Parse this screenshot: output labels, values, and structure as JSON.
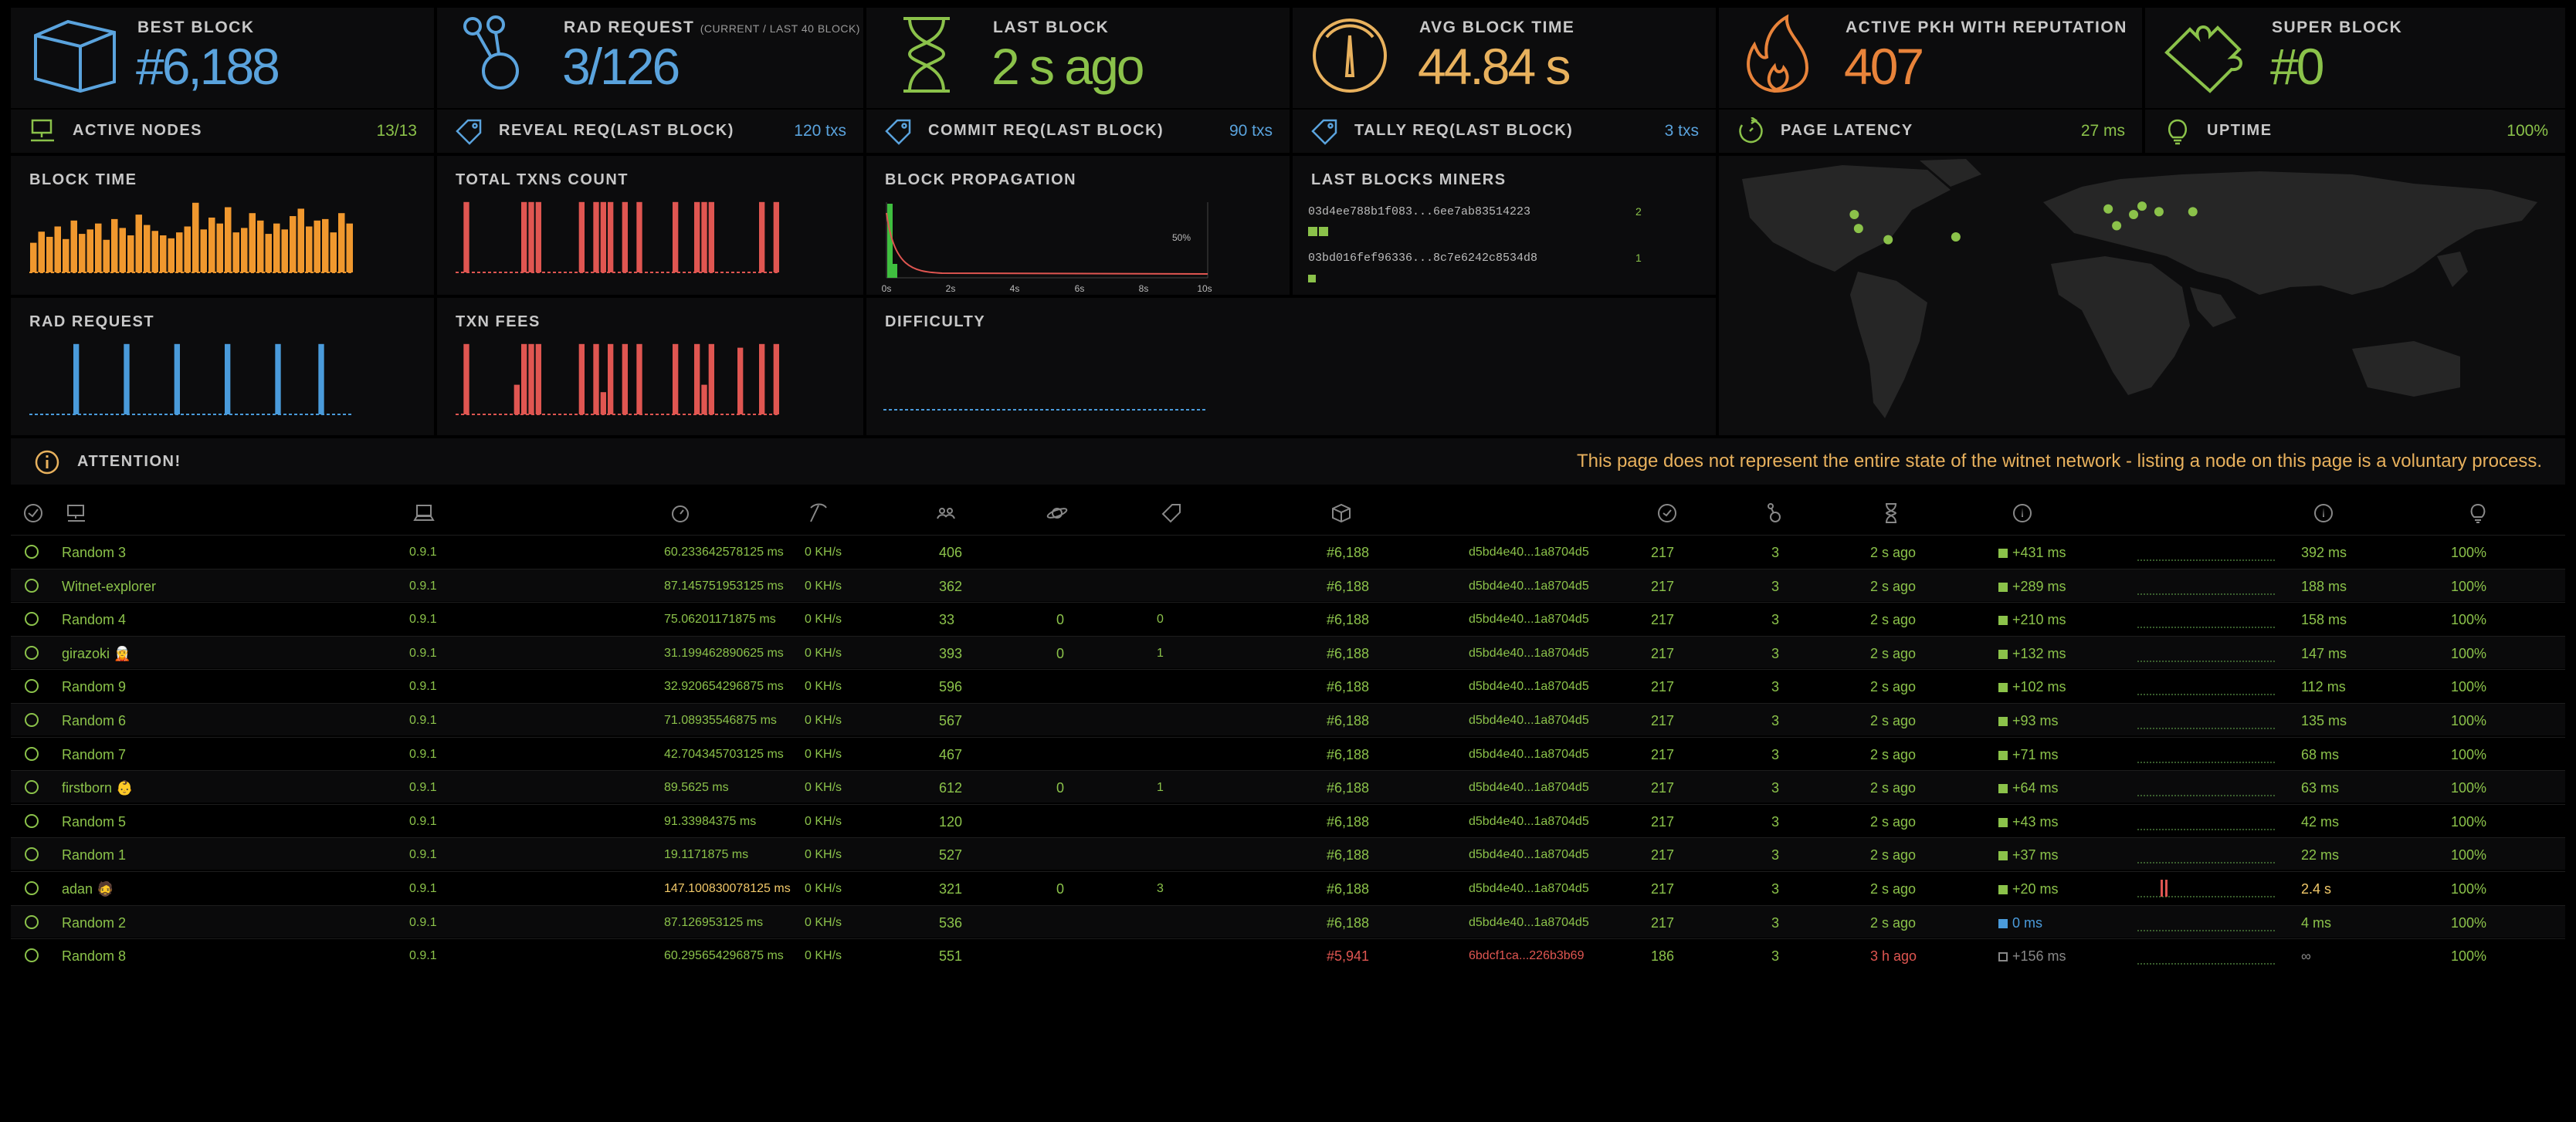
{
  "stats": {
    "best_block": {
      "label": "BEST BLOCK",
      "value": "#6,188",
      "icon": "cube-icon",
      "color": "#5aa3dd"
    },
    "rad_request": {
      "label": "RAD REQUEST",
      "sublabel": "(CURRENT / LAST 40 BLOCK)",
      "value": "3/126",
      "icon": "network-icon",
      "color": "#5aa3dd"
    },
    "last_block": {
      "label": "LAST BLOCK",
      "value": "2 s ago",
      "icon": "hourglass-icon",
      "color": "#8bc24a"
    },
    "avg_block_time": {
      "label": "AVG BLOCK TIME",
      "value": "44.84 s",
      "icon": "gauge-icon",
      "color": "#e8b15d"
    },
    "active_pkh": {
      "label": "ACTIVE PKH WITH REPUTATION",
      "value": "407",
      "icon": "fire-icon",
      "color": "#e8833a"
    },
    "super_block": {
      "label": "SUPER BLOCK",
      "value": "#0",
      "icon": "puzzle-icon",
      "color": "#8bc24a"
    }
  },
  "substats": {
    "active_nodes": {
      "label": "ACTIVE NODES",
      "value": "13/13",
      "icon": "monitor-icon",
      "color": "#8bc24a"
    },
    "reveal_req": {
      "label": "REVEAL REQ(LAST BLOCK)",
      "value": "120 txs",
      "icon": "tag-icon",
      "color": "#5aa3dd"
    },
    "commit_req": {
      "label": "COMMIT REQ(LAST BLOCK)",
      "value": "90 txs",
      "icon": "tag-icon",
      "color": "#5aa3dd"
    },
    "tally_req": {
      "label": "TALLY REQ(LAST BLOCK)",
      "value": "3 txs",
      "icon": "tag-icon",
      "color": "#5aa3dd"
    },
    "page_latency": {
      "label": "PAGE LATENCY",
      "value": "27 ms",
      "icon": "refresh-icon",
      "color": "#8bc24a"
    },
    "uptime": {
      "label": "UPTIME",
      "value": "100%",
      "icon": "bulb-icon",
      "color": "#8bc24a"
    }
  },
  "charts": {
    "block_time": {
      "label": "BLOCK TIME"
    },
    "total_txns": {
      "label": "TOTAL TXNS COUNT"
    },
    "block_propagation": {
      "label": "BLOCK PROPAGATION",
      "percent_label": "50%",
      "ticks": [
        "0s",
        "2s",
        "4s",
        "6s",
        "8s",
        "10s"
      ]
    },
    "rad_request": {
      "label": "RAD REQUEST"
    },
    "txn_fees": {
      "label": "TXN FEES"
    },
    "difficulty": {
      "label": "DIFFICULTY"
    }
  },
  "chart_data": [
    {
      "type": "bar",
      "name": "block_time",
      "values": [
        40,
        55,
        48,
        62,
        45,
        70,
        52,
        58,
        66,
        44,
        72,
        60,
        50,
        78,
        64,
        56,
        50,
        46,
        54,
        62,
        94,
        58,
        74,
        66,
        88,
        54,
        60,
        80,
        70,
        52,
        66,
        58,
        76,
        86,
        62,
        70,
        72,
        54,
        80,
        66
      ],
      "color": "#f0982e"
    },
    {
      "type": "bar",
      "name": "total_txns",
      "values": [
        0,
        95,
        0,
        0,
        0,
        0,
        0,
        0,
        0,
        95,
        95,
        95,
        0,
        0,
        0,
        0,
        0,
        95,
        0,
        95,
        95,
        95,
        0,
        95,
        0,
        95,
        0,
        0,
        0,
        0,
        95,
        0,
        0,
        95,
        95,
        95,
        0,
        0,
        0,
        0,
        0,
        0,
        95,
        0,
        95
      ],
      "color": "#e05651"
    },
    {
      "type": "bar",
      "name": "rad_request",
      "values": [
        0,
        0,
        0,
        0,
        0,
        0,
        95,
        0,
        0,
        0,
        0,
        0,
        0,
        95,
        0,
        0,
        0,
        0,
        0,
        0,
        95,
        0,
        0,
        0,
        0,
        0,
        0,
        95,
        0,
        0,
        0,
        0,
        0,
        0,
        95,
        0,
        0,
        0,
        0,
        0,
        95,
        0,
        0,
        0,
        0
      ],
      "color": "#4a9bdb"
    },
    {
      "type": "bar",
      "name": "txn_fees",
      "values": [
        0,
        95,
        0,
        0,
        0,
        0,
        0,
        0,
        40,
        95,
        95,
        95,
        0,
        0,
        0,
        0,
        0,
        95,
        0,
        95,
        30,
        95,
        0,
        95,
        0,
        95,
        0,
        0,
        0,
        0,
        95,
        0,
        0,
        95,
        40,
        95,
        0,
        0,
        0,
        90,
        0,
        0,
        95,
        0,
        95
      ],
      "color": "#e05651"
    },
    {
      "type": "line",
      "name": "block_propagation",
      "x_ticks": [
        "0s",
        "2s",
        "4s",
        "6s",
        "8s",
        "10s"
      ]
    },
    {
      "type": "line",
      "name": "difficulty",
      "values": []
    }
  ],
  "miners": {
    "label": "LAST BLOCKS MINERS",
    "items": [
      {
        "address": "03d4ee788b1f083...6ee7ab83514223",
        "count": "2",
        "blocks": 2
      },
      {
        "address": "03bd016fef96336...8c7e6242c8534d8",
        "count": "1",
        "blocks": 1
      }
    ]
  },
  "map": {
    "nodes": [
      [
        0.16,
        0.21
      ],
      [
        0.165,
        0.26
      ],
      [
        0.2,
        0.3
      ],
      [
        0.28,
        0.29
      ],
      [
        0.46,
        0.19
      ],
      [
        0.47,
        0.25
      ],
      [
        0.49,
        0.21
      ],
      [
        0.5,
        0.18
      ],
      [
        0.52,
        0.2
      ],
      [
        0.56,
        0.2
      ]
    ]
  },
  "attention": {
    "label": "ATTENTION!",
    "message": "This page does not represent the entire state of the witnet network - listing a node on this page is a voluntary process."
  },
  "nodes": [
    {
      "name": "Random 3",
      "version": "0.9.1",
      "latency": "60.233642578125 ms",
      "hashrate": "0 KH/s",
      "peers": "406",
      "pending": "",
      "txs": "",
      "block": "#6,188",
      "hash": "d5bd4e40...1a8704d5",
      "txcount": "217",
      "rads": "3",
      "age": "2 s ago",
      "prop": "+431 ms",
      "avg": "392 ms",
      "uptime": "100%"
    },
    {
      "name": "Witnet-explorer",
      "version": "0.9.1",
      "latency": "87.145751953125 ms",
      "hashrate": "0 KH/s",
      "peers": "362",
      "pending": "",
      "txs": "",
      "block": "#6,188",
      "hash": "d5bd4e40...1a8704d5",
      "txcount": "217",
      "rads": "3",
      "age": "2 s ago",
      "prop": "+289 ms",
      "avg": "188 ms",
      "uptime": "100%"
    },
    {
      "name": "Random 4",
      "version": "0.9.1",
      "latency": "75.06201171875 ms",
      "hashrate": "0 KH/s",
      "peers": "33",
      "pending": "0",
      "txs": "0",
      "block": "#6,188",
      "hash": "d5bd4e40...1a8704d5",
      "txcount": "217",
      "rads": "3",
      "age": "2 s ago",
      "prop": "+210 ms",
      "avg": "158 ms",
      "uptime": "100%"
    },
    {
      "name": "girazoki 🧝",
      "version": "0.9.1",
      "latency": "31.199462890625 ms",
      "hashrate": "0 KH/s",
      "peers": "393",
      "pending": "0",
      "txs": "1",
      "block": "#6,188",
      "hash": "d5bd4e40...1a8704d5",
      "txcount": "217",
      "rads": "3",
      "age": "2 s ago",
      "prop": "+132 ms",
      "avg": "147 ms",
      "uptime": "100%"
    },
    {
      "name": "Random 9",
      "version": "0.9.1",
      "latency": "32.920654296875 ms",
      "hashrate": "0 KH/s",
      "peers": "596",
      "pending": "",
      "txs": "",
      "block": "#6,188",
      "hash": "d5bd4e40...1a8704d5",
      "txcount": "217",
      "rads": "3",
      "age": "2 s ago",
      "prop": "+102 ms",
      "avg": "112 ms",
      "uptime": "100%"
    },
    {
      "name": "Random 6",
      "version": "0.9.1",
      "latency": "71.08935546875 ms",
      "hashrate": "0 KH/s",
      "peers": "567",
      "pending": "",
      "txs": "",
      "block": "#6,188",
      "hash": "d5bd4e40...1a8704d5",
      "txcount": "217",
      "rads": "3",
      "age": "2 s ago",
      "prop": "+93 ms",
      "avg": "135 ms",
      "uptime": "100%"
    },
    {
      "name": "Random 7",
      "version": "0.9.1",
      "latency": "42.704345703125 ms",
      "hashrate": "0 KH/s",
      "peers": "467",
      "pending": "",
      "txs": "",
      "block": "#6,188",
      "hash": "d5bd4e40...1a8704d5",
      "txcount": "217",
      "rads": "3",
      "age": "2 s ago",
      "prop": "+71 ms",
      "avg": "68 ms",
      "uptime": "100%"
    },
    {
      "name": "firstborn 👶",
      "version": "0.9.1",
      "latency": "89.5625 ms",
      "hashrate": "0 KH/s",
      "peers": "612",
      "pending": "0",
      "txs": "1",
      "block": "#6,188",
      "hash": "d5bd4e40...1a8704d5",
      "txcount": "217",
      "rads": "3",
      "age": "2 s ago",
      "prop": "+64 ms",
      "avg": "63 ms",
      "uptime": "100%"
    },
    {
      "name": "Random 5",
      "version": "0.9.1",
      "latency": "91.33984375 ms",
      "hashrate": "0 KH/s",
      "peers": "120",
      "pending": "",
      "txs": "",
      "block": "#6,188",
      "hash": "d5bd4e40...1a8704d5",
      "txcount": "217",
      "rads": "3",
      "age": "2 s ago",
      "prop": "+43 ms",
      "avg": "42 ms",
      "uptime": "100%"
    },
    {
      "name": "Random 1",
      "version": "0.9.1",
      "latency": "19.1171875 ms",
      "hashrate": "0 KH/s",
      "peers": "527",
      "pending": "",
      "txs": "",
      "block": "#6,188",
      "hash": "d5bd4e40...1a8704d5",
      "txcount": "217",
      "rads": "3",
      "age": "2 s ago",
      "prop": "+37 ms",
      "avg": "22 ms",
      "uptime": "100%"
    },
    {
      "name": "adan 🧔",
      "version": "0.9.1",
      "latency": "147.100830078125 ms",
      "hashrate": "0 KH/s",
      "peers": "321",
      "pending": "0",
      "txs": "3",
      "block": "#6,188",
      "hash": "d5bd4e40...1a8704d5",
      "txcount": "217",
      "rads": "3",
      "age": "2 s ago",
      "prop": "+20 ms",
      "avg": "2.4 s",
      "uptime": "100%",
      "warn": true
    },
    {
      "name": "Random 2",
      "version": "0.9.1",
      "latency": "87.126953125 ms",
      "hashrate": "0 KH/s",
      "peers": "536",
      "pending": "",
      "txs": "",
      "block": "#6,188",
      "hash": "d5bd4e40...1a8704d5",
      "txcount": "217",
      "rads": "3",
      "age": "2 s ago",
      "prop": "0 ms",
      "avg": "4 ms",
      "uptime": "100%",
      "propblue": true
    },
    {
      "name": "Random 8",
      "version": "0.9.1",
      "latency": "60.295654296875 ms",
      "hashrate": "0 KH/s",
      "peers": "551",
      "pending": "",
      "txs": "",
      "block": "#5,941",
      "hash": "6bdcf1ca...226b3b69",
      "txcount": "186",
      "rads": "3",
      "age": "3 h ago",
      "prop": "+156 ms",
      "avg": "∞",
      "uptime": "100%",
      "stale": true
    }
  ]
}
